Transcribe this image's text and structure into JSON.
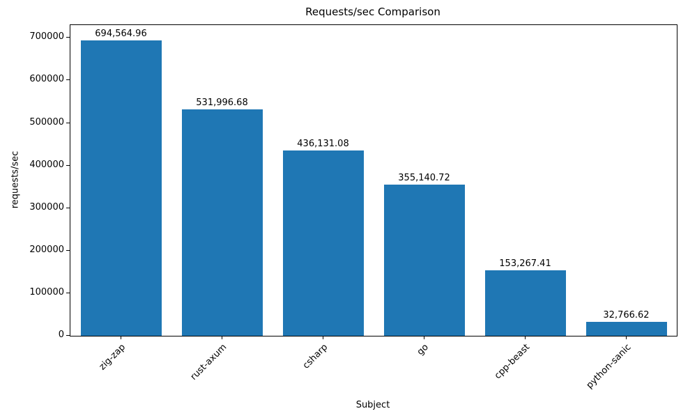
{
  "chart_data": {
    "type": "bar",
    "title": "Requests/sec Comparison",
    "xlabel": "Subject",
    "ylabel": "requests/sec",
    "categories": [
      "zig-zap",
      "rust-axum",
      "csharp",
      "go",
      "cpp-beast",
      "python-sanic"
    ],
    "values": [
      694564.96,
      531996.68,
      436131.08,
      355140.72,
      153267.41,
      32766.62
    ],
    "value_labels": [
      "694,564.96",
      "531,996.68",
      "436,131.08",
      "355,140.72",
      "153,267.41",
      "32,766.62"
    ],
    "yticks": [
      0,
      100000,
      200000,
      300000,
      400000,
      500000,
      600000,
      700000
    ],
    "ylim": [
      0,
      730000
    ],
    "bar_color": "#1f77b4",
    "grid": false,
    "legend_position": "none"
  }
}
